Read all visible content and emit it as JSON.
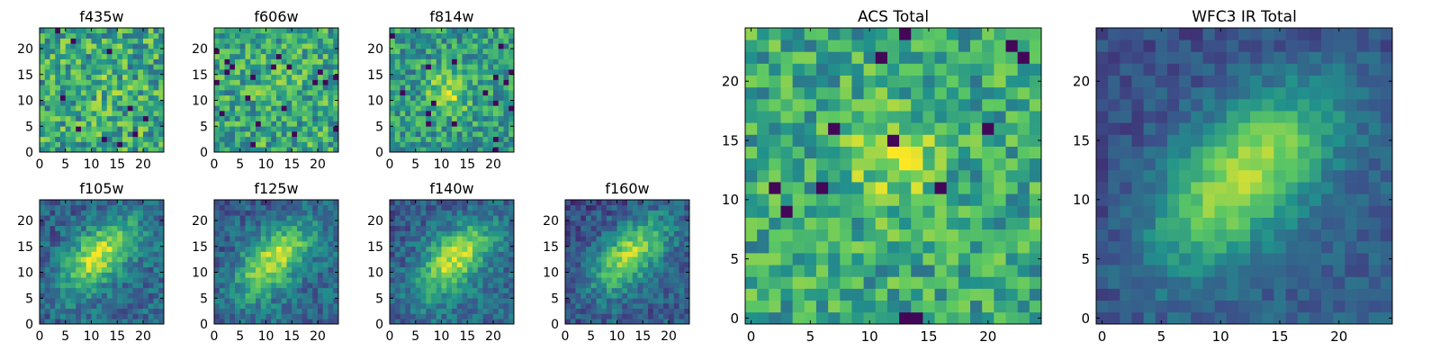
{
  "figure": {
    "colormap": "viridis",
    "colormap_stops": [
      "#440154",
      "#3b528b",
      "#21918c",
      "#5ec962",
      "#fde725"
    ]
  },
  "chart_data": [
    {
      "type": "heatmap",
      "title": "f435w",
      "grid_size": 24,
      "pixel_range": [
        0,
        24
      ],
      "xticks": [
        0,
        5,
        10,
        15,
        20
      ],
      "yticks": [
        0,
        5,
        10,
        15,
        20
      ],
      "pattern": "noise",
      "peak": [
        12,
        12
      ],
      "peak_strength": 0.05,
      "noise_level": 0.55,
      "base_level": 0.6,
      "seed": 11
    },
    {
      "type": "heatmap",
      "title": "f606w",
      "grid_size": 24,
      "pixel_range": [
        0,
        24
      ],
      "xticks": [
        0,
        5,
        10,
        15,
        20
      ],
      "yticks": [
        0,
        5,
        10,
        15,
        20
      ],
      "pattern": "noise",
      "peak": [
        12,
        12
      ],
      "peak_strength": 0.1,
      "noise_level": 0.5,
      "base_level": 0.6,
      "seed": 23
    },
    {
      "type": "heatmap",
      "title": "f814w",
      "grid_size": 24,
      "pixel_range": [
        0,
        24
      ],
      "xticks": [
        0,
        5,
        10,
        15,
        20
      ],
      "yticks": [
        0,
        5,
        10,
        15,
        20
      ],
      "pattern": "noise-with-peak",
      "peak": [
        11,
        11
      ],
      "peak_strength": 0.3,
      "noise_level": 0.45,
      "base_level": 0.55,
      "seed": 37
    },
    {
      "type": "heatmap",
      "title": "f105w",
      "grid_size": 24,
      "pixel_range": [
        0,
        24
      ],
      "xticks": [
        0,
        5,
        10,
        15,
        20
      ],
      "yticks": [
        0,
        5,
        10,
        15,
        20
      ],
      "pattern": "diagonal-blob",
      "peak": [
        11,
        13
      ],
      "peak_strength": 0.55,
      "noise_level": 0.3,
      "base_level": 0.35,
      "seed": 41
    },
    {
      "type": "heatmap",
      "title": "f125w",
      "grid_size": 24,
      "pixel_range": [
        0,
        24
      ],
      "xticks": [
        0,
        5,
        10,
        15,
        20
      ],
      "yticks": [
        0,
        5,
        10,
        15,
        20
      ],
      "pattern": "diagonal-blob",
      "peak": [
        11,
        12
      ],
      "peak_strength": 0.55,
      "noise_level": 0.3,
      "base_level": 0.35,
      "seed": 53
    },
    {
      "type": "heatmap",
      "title": "f140w",
      "grid_size": 24,
      "pixel_range": [
        0,
        24
      ],
      "xticks": [
        0,
        5,
        10,
        15,
        20
      ],
      "yticks": [
        0,
        5,
        10,
        15,
        20
      ],
      "pattern": "diagonal-blob",
      "peak": [
        12,
        12
      ],
      "peak_strength": 0.55,
      "noise_level": 0.28,
      "base_level": 0.35,
      "seed": 67
    },
    {
      "type": "heatmap",
      "title": "f160w",
      "grid_size": 24,
      "pixel_range": [
        0,
        24
      ],
      "xticks": [
        0,
        5,
        10,
        15,
        20
      ],
      "yticks": [
        0,
        5,
        10,
        15,
        20
      ],
      "pattern": "diagonal-blob",
      "peak": [
        12,
        13
      ],
      "peak_strength": 0.55,
      "noise_level": 0.28,
      "base_level": 0.3,
      "seed": 79
    },
    {
      "type": "heatmap",
      "title": "ACS Total",
      "grid_size": 25,
      "pixel_range": [
        -0.5,
        24.5
      ],
      "xticks": [
        0,
        5,
        10,
        15,
        20
      ],
      "yticks": [
        0,
        5,
        10,
        15,
        20
      ],
      "pattern": "noise-with-peak",
      "peak": [
        12,
        13
      ],
      "peak_strength": 0.25,
      "noise_level": 0.45,
      "base_level": 0.6,
      "seed": 97
    },
    {
      "type": "heatmap",
      "title": "WFC3 IR Total",
      "grid_size": 25,
      "pixel_range": [
        -0.5,
        24.5
      ],
      "xticks": [
        0,
        5,
        10,
        15,
        20
      ],
      "yticks": [
        0,
        5,
        10,
        15,
        20
      ],
      "pattern": "diagonal-blob",
      "peak": [
        12,
        12
      ],
      "peak_strength": 0.6,
      "noise_level": 0.18,
      "base_level": 0.3,
      "seed": 113
    }
  ]
}
